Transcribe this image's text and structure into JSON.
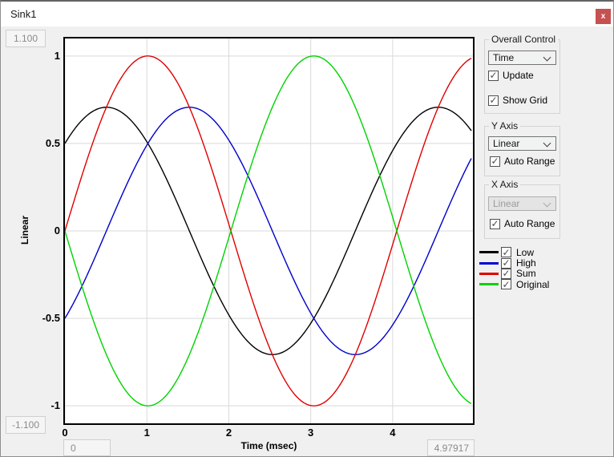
{
  "window": {
    "title": "Sink1",
    "close_glyph": "x"
  },
  "colors": {
    "close_button": "#c75050",
    "grid": "#d9d9d9",
    "plot_border": "#000000",
    "range_text": "#8a8a8a"
  },
  "range_fields": {
    "y_max": "1.100",
    "y_min": "-1.100",
    "x_min": "0",
    "x_max": "4.97917"
  },
  "controls": {
    "overall": {
      "label": "Overall Control",
      "dropdown_value": "Time",
      "checkboxes": [
        {
          "label": "Update",
          "checked": true
        },
        {
          "label": "Show Grid",
          "checked": true
        }
      ]
    },
    "y_axis": {
      "label": "Y Axis",
      "dropdown_value": "Linear",
      "dropdown_enabled": true,
      "checkboxes": [
        {
          "label": "Auto Range",
          "checked": true
        }
      ]
    },
    "x_axis": {
      "label": "X Axis",
      "dropdown_value": "Linear",
      "dropdown_enabled": false,
      "checkboxes": [
        {
          "label": "Auto Range",
          "checked": true
        }
      ]
    }
  },
  "legend": {
    "items": [
      {
        "label": "Low",
        "color": "#000000",
        "checked": true
      },
      {
        "label": "High",
        "color": "#0000cc",
        "checked": true
      },
      {
        "label": "Sum",
        "color": "#e00000",
        "checked": true
      },
      {
        "label": "Original",
        "color": "#00d300",
        "checked": true
      }
    ]
  },
  "chart_data": {
    "type": "line",
    "title": "",
    "xlabel": "Time (msec)",
    "ylabel": "Linear",
    "xlim": [
      0,
      4.97917
    ],
    "ylim": [
      -1.1,
      1.1
    ],
    "x_ticks": [
      0,
      1,
      2,
      3,
      4
    ],
    "y_ticks": [
      1,
      0.5,
      0,
      -0.5,
      -1
    ],
    "grid": true,
    "legend_position": "right",
    "waveform_model": "y = amplitude * sin(2*pi*t/period_msec + phase_deg)",
    "period_msec": 4.05,
    "series": [
      {
        "name": "Low",
        "color": "#000000",
        "amplitude": 0.707,
        "phase_deg": 45,
        "x": [
          0,
          0.5,
          1,
          1.5,
          2,
          2.5,
          3,
          3.5,
          4,
          4.5,
          4.98
        ],
        "y": [
          0.5,
          0.71,
          0.51,
          0.02,
          -0.47,
          -0.71,
          -0.53,
          -0.05,
          0.46,
          0.7,
          0.56
        ]
      },
      {
        "name": "High",
        "color": "#0000cc",
        "amplitude": 0.707,
        "phase_deg": -45,
        "x": [
          0,
          0.5,
          1,
          1.5,
          2,
          2.5,
          3,
          3.5,
          4,
          4.5,
          4.98
        ],
        "y": [
          -0.5,
          -0.01,
          0.49,
          0.71,
          0.52,
          0.03,
          -0.47,
          -0.71,
          -0.54,
          -0.06,
          0.43
        ]
      },
      {
        "name": "Sum",
        "color": "#e00000",
        "amplitude": 1.0,
        "phase_deg": 0,
        "x": [
          0,
          0.5,
          1,
          1.5,
          2,
          2.5,
          3,
          3.5,
          4,
          4.5,
          4.98
        ],
        "y": [
          0,
          0.7,
          1.0,
          0.73,
          0.04,
          -0.66,
          -1.0,
          -0.75,
          -0.08,
          0.64,
          0.99
        ]
      },
      {
        "name": "Original",
        "color": "#00d300",
        "amplitude": 1.0,
        "phase_deg": 180,
        "x": [
          0,
          0.5,
          1,
          1.5,
          2,
          2.5,
          3,
          3.5,
          4,
          4.5,
          4.98
        ],
        "y": [
          0,
          -0.7,
          -1.0,
          -0.73,
          -0.04,
          0.66,
          1.0,
          0.75,
          0.08,
          -0.64,
          -0.99
        ]
      }
    ]
  }
}
